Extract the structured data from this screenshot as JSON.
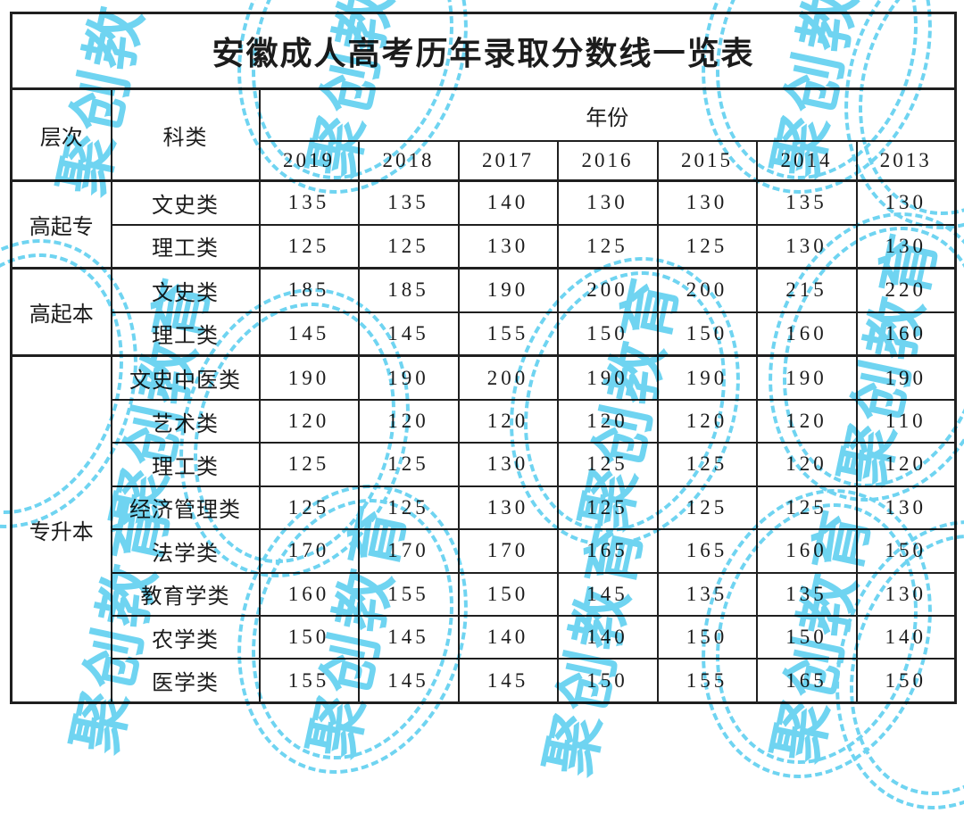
{
  "title": "安徽成人高考历年录取分数线一览表",
  "header": {
    "level": "层次",
    "category": "科类",
    "year_label": "年份",
    "years": [
      "2019",
      "2018",
      "2017",
      "2016",
      "2015",
      "2014",
      "2013"
    ]
  },
  "sections": [
    {
      "level": "高起专",
      "rows": [
        {
          "category": "文史类",
          "values": [
            135,
            135,
            140,
            130,
            130,
            135,
            130
          ]
        },
        {
          "category": "理工类",
          "values": [
            125,
            125,
            130,
            125,
            125,
            130,
            130
          ]
        }
      ]
    },
    {
      "level": "高起本",
      "rows": [
        {
          "category": "文史类",
          "values": [
            185,
            185,
            190,
            200,
            200,
            215,
            220
          ]
        },
        {
          "category": "理工类",
          "values": [
            145,
            145,
            155,
            150,
            150,
            160,
            160
          ]
        }
      ]
    },
    {
      "level": "专升本",
      "rows": [
        {
          "category": "文史中医类",
          "values": [
            190,
            190,
            200,
            190,
            190,
            190,
            190
          ]
        },
        {
          "category": "艺术类",
          "values": [
            120,
            120,
            120,
            120,
            120,
            120,
            110
          ]
        },
        {
          "category": "理工类",
          "values": [
            125,
            125,
            130,
            125,
            125,
            120,
            120
          ]
        },
        {
          "category": "经济管理类",
          "values": [
            125,
            125,
            130,
            125,
            125,
            125,
            130
          ]
        },
        {
          "category": "法学类",
          "values": [
            170,
            170,
            170,
            165,
            165,
            160,
            150
          ]
        },
        {
          "category": "教育学类",
          "values": [
            160,
            155,
            150,
            145,
            135,
            135,
            130
          ]
        },
        {
          "category": "农学类",
          "values": [
            150,
            145,
            140,
            140,
            150,
            150,
            140
          ]
        },
        {
          "category": "医学类",
          "values": [
            155,
            145,
            145,
            150,
            155,
            165,
            150
          ]
        }
      ]
    }
  ],
  "watermark": {
    "text": "聚创教育",
    "color": "#6fd4f1"
  },
  "colors": {
    "border": "#1f1f1f",
    "text": "#1c1c1c",
    "background": "#ffffff"
  }
}
